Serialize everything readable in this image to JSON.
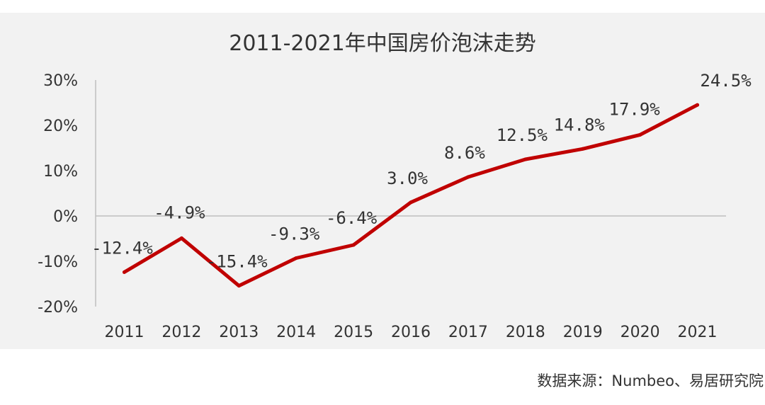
{
  "chart_data": {
    "type": "line",
    "title": "2011-2021年中国房价泡沫走势",
    "categories": [
      "2011",
      "2012",
      "2013",
      "2014",
      "2015",
      "2016",
      "2017",
      "2018",
      "2019",
      "2020",
      "2021"
    ],
    "series": [
      {
        "values": [
          -12.4,
          -4.9,
          -15.4,
          -9.3,
          -6.4,
          3.0,
          8.6,
          12.5,
          14.8,
          17.9,
          24.5
        ],
        "data_labels": [
          "-12.4%",
          "-4.9%",
          "-15.4%",
          "-9.3%",
          "-6.4%",
          "3.0%",
          "8.6%",
          "12.5%",
          "14.8%",
          "17.9%",
          "24.5%"
        ],
        "color": "#c00000"
      }
    ],
    "y_ticks": [
      30,
      20,
      10,
      0,
      -10,
      -20
    ],
    "y_tick_labels": [
      "30%",
      "20%",
      "10%",
      "0%",
      "-10%",
      "-20%"
    ],
    "ylim": [
      -20,
      30
    ],
    "grid": false,
    "legend": "none",
    "colors": {
      "line": "#c00000",
      "axis": "#bfbfbf",
      "panel": "#f2f2f2",
      "text": "#333333"
    }
  },
  "source": "数据来源：Numbeo、易居研究院"
}
